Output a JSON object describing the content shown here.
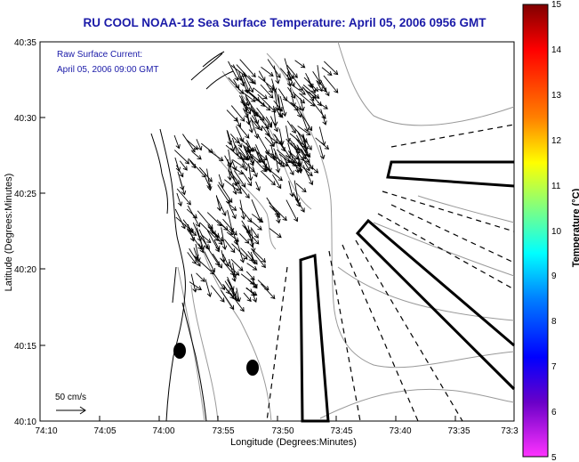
{
  "title": "RU COOL  NOAA-12  Sea Surface Temperature:  April 05, 2006 0956 GMT",
  "overlay": {
    "line1": "Raw Surface Current:",
    "line2": "April 05, 2006 09:00 GMT"
  },
  "axes": {
    "ylabel": "Latitude (Degrees:Minutes)",
    "xlabel": "Longitude (Degrees:Minutes)",
    "yticks": [
      "40:35",
      "40:30",
      "40:25",
      "40:20",
      "40:15",
      "40:10"
    ],
    "xticks": [
      "74:10",
      "74:05",
      "74:00",
      "73:55",
      "73:50",
      "73:45",
      "73:40",
      "73:35",
      "73:3"
    ]
  },
  "scale": {
    "label": "50 cm/s"
  },
  "colorbar": {
    "label": "Temperature (°C)",
    "ticks": [
      "15",
      "14",
      "13",
      "12",
      "11",
      "10",
      "9",
      "8",
      "7",
      "6",
      "5"
    ],
    "colors": [
      "#800000",
      "#ff0000",
      "#ff8000",
      "#ffff00",
      "#80ff80",
      "#00ffff",
      "#0080ff",
      "#0000ff",
      "#6a00c8",
      "#ff33ff"
    ]
  },
  "colors": {
    "title": "#1a1aa8",
    "land": "#000000",
    "contours": "#999999"
  }
}
